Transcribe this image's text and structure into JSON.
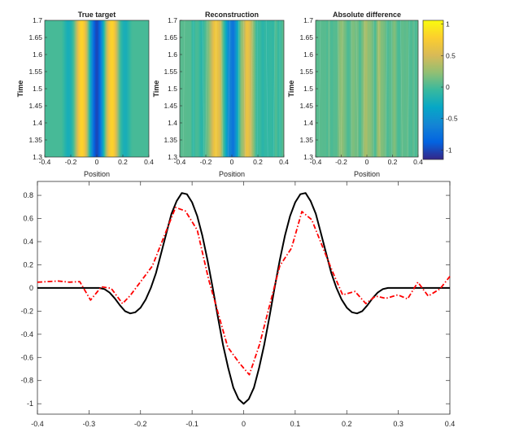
{
  "chart_data": [
    {
      "type": "heatmap",
      "title": "True target",
      "xlabel": "Position",
      "ylabel": "Time",
      "xlim": [
        -0.4,
        0.4
      ],
      "ylim": [
        1.3,
        1.7
      ],
      "xticks": [
        "-0.4",
        "-0.2",
        "0",
        "0.2",
        "0.4"
      ],
      "yticks": [
        "1.3",
        "1.35",
        "1.4",
        "1.45",
        "1.5",
        "1.55",
        "1.6",
        "1.65",
        "1.7"
      ],
      "source": "true_target"
    },
    {
      "type": "heatmap",
      "title": "Reconstruction",
      "xlabel": "Position",
      "ylabel": "Time",
      "xlim": [
        -0.4,
        0.4
      ],
      "ylim": [
        1.3,
        1.7
      ],
      "xticks": [
        "-0.4",
        "-0.2",
        "0",
        "0.2",
        "0.4"
      ],
      "yticks": [
        "1.3",
        "1.35",
        "1.4",
        "1.45",
        "1.5",
        "1.55",
        "1.6",
        "1.65",
        "1.7"
      ],
      "source": "reconstruction"
    },
    {
      "type": "heatmap",
      "title": "Absolute difference",
      "xlabel": "Position",
      "ylabel": "Time",
      "xlim": [
        -0.4,
        0.4
      ],
      "ylim": [
        1.3,
        1.7
      ],
      "xticks": [
        "-0.4",
        "-0.2",
        "0",
        "0.2",
        "0.4"
      ],
      "yticks": [
        "1.3",
        "1.35",
        "1.4",
        "1.45",
        "1.5",
        "1.55",
        "1.6",
        "1.65",
        "1.7"
      ],
      "source": "difference",
      "colorbar": {
        "clim": [
          -1.15,
          1.06
        ],
        "ticks": [
          -1,
          -0.5,
          0,
          0.5,
          1
        ],
        "tick_labels": [
          "-1",
          "-0.5",
          "0",
          "0.5",
          "1"
        ],
        "colormap": "parula"
      }
    },
    {
      "type": "line",
      "xlim": [
        -0.4,
        0.4
      ],
      "ylim": [
        -1.09,
        0.92
      ],
      "xticks": [
        -0.4,
        -0.3,
        -0.2,
        -0.1,
        0,
        0.1,
        0.2,
        0.3,
        0.4
      ],
      "xtick_labels": [
        "-0.4",
        "-0.3",
        "-0.2",
        "-0.1",
        "0",
        "0.1",
        "0.2",
        "0.3",
        "0.4"
      ],
      "yticks": [
        -1,
        -0.8,
        -0.6,
        -0.4,
        -0.2,
        0,
        0.2,
        0.4,
        0.6,
        0.8
      ],
      "ytick_labels": [
        "-1",
        "-0.8",
        "-0.6",
        "-0.4",
        "-0.2",
        "0",
        "0.2",
        "0.4",
        "0.6",
        "0.8"
      ],
      "grid": false,
      "series": [
        {
          "id": "true_target",
          "color": "#000000",
          "style": "solid",
          "x": [
            -0.4,
            -0.39,
            -0.38,
            -0.37,
            -0.36,
            -0.35,
            -0.34,
            -0.33,
            -0.32,
            -0.31,
            -0.3,
            -0.29,
            -0.28,
            -0.27,
            -0.26,
            -0.25,
            -0.24,
            -0.23,
            -0.22,
            -0.21,
            -0.2,
            -0.19,
            -0.18,
            -0.17,
            -0.16,
            -0.15,
            -0.14,
            -0.13,
            -0.12,
            -0.11,
            -0.1,
            -0.09,
            -0.08,
            -0.07,
            -0.06,
            -0.05,
            -0.04,
            -0.03,
            -0.02,
            -0.01,
            0,
            0.01,
            0.02,
            0.03,
            0.04,
            0.05,
            0.06,
            0.07,
            0.08,
            0.09,
            0.1,
            0.11,
            0.12,
            0.13,
            0.14,
            0.15,
            0.16,
            0.17,
            0.18,
            0.19,
            0.2,
            0.21,
            0.22,
            0.23,
            0.24,
            0.25,
            0.26,
            0.27,
            0.28,
            0.29,
            0.3,
            0.31,
            0.32,
            0.33,
            0.34,
            0.35,
            0.36,
            0.37,
            0.38,
            0.39,
            0.4
          ],
          "y": [
            0,
            0,
            0,
            0,
            0,
            0,
            0,
            0,
            0,
            0,
            0,
            0,
            0,
            -0.01,
            -0.04,
            -0.09,
            -0.15,
            -0.2,
            -0.22,
            -0.21,
            -0.17,
            -0.1,
            0,
            0.13,
            0.3,
            0.47,
            0.64,
            0.75,
            0.82,
            0.81,
            0.74,
            0.62,
            0.45,
            0.24,
            0,
            -0.25,
            -0.49,
            -0.69,
            -0.86,
            -0.96,
            -1,
            -0.96,
            -0.86,
            -0.69,
            -0.49,
            -0.25,
            0,
            0.24,
            0.45,
            0.62,
            0.74,
            0.81,
            0.82,
            0.75,
            0.64,
            0.47,
            0.3,
            0.13,
            0,
            -0.1,
            -0.17,
            -0.21,
            -0.22,
            -0.2,
            -0.15,
            -0.09,
            -0.04,
            -0.01,
            0,
            0,
            0,
            0,
            0,
            0,
            0,
            0,
            0,
            0,
            0,
            0,
            0
          ]
        },
        {
          "id": "reconstruction",
          "color": "#ff0000",
          "style": "dash-dot",
          "x": [
            -0.4,
            -0.36,
            -0.338,
            -0.318,
            -0.297,
            -0.276,
            -0.257,
            -0.235,
            -0.22,
            -0.177,
            -0.132,
            -0.113,
            -0.09,
            -0.068,
            -0.031,
            -0.008,
            0.011,
            0.031,
            0.07,
            0.093,
            0.113,
            0.132,
            0.172,
            0.192,
            0.216,
            0.237,
            0.256,
            0.276,
            0.299,
            0.318,
            0.338,
            0.358,
            0.381,
            0.4
          ],
          "y": [
            0.05,
            0.06,
            0.05,
            0.055,
            -0.105,
            0.01,
            -0.003,
            -0.135,
            -0.065,
            0.19,
            0.695,
            0.665,
            0.5,
            0.075,
            -0.51,
            -0.65,
            -0.75,
            -0.487,
            0.19,
            0.345,
            0.66,
            0.59,
            0.145,
            -0.06,
            -0.03,
            -0.135,
            -0.07,
            -0.09,
            -0.06,
            -0.095,
            0.05,
            -0.07,
            -0.007,
            0.1
          ]
        }
      ]
    }
  ]
}
